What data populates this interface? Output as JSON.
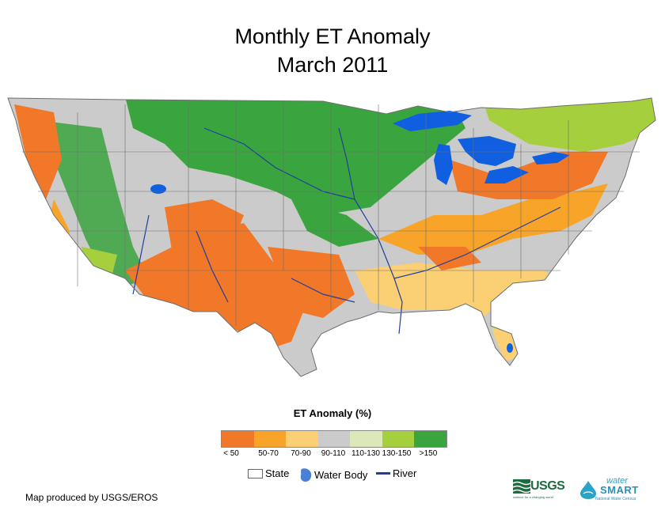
{
  "title": {
    "line1": "Monthly ET Anomaly",
    "line2": "March 2011"
  },
  "legend": {
    "title": "ET Anomaly (%)",
    "classes": [
      {
        "label": "< 50",
        "color": "#f07828"
      },
      {
        "label": "50-70",
        "color": "#f8a428"
      },
      {
        "label": "70-90",
        "color": "#fbcf73"
      },
      {
        "label": "90-110",
        "color": "#cbcbcb"
      },
      {
        "label": "110-130",
        "color": "#dce8b8"
      },
      {
        "label": "130-150",
        "color": "#a5cf3c"
      },
      {
        "label": ">150",
        "color": "#3aa53e"
      }
    ]
  },
  "reference_legend": {
    "state": "State",
    "water_body": "Water Body",
    "river": "River"
  },
  "credit": "Map produced by USGS/EROS",
  "logos": {
    "usgs": "USGS",
    "usgs_tagline": "science for a changing world",
    "water": "water",
    "smart": "SMART",
    "census": "National Water Census"
  },
  "colors": {
    "water": "#0f5fe0",
    "river": "#1f3f9e",
    "state_border": "#6e6e6e",
    "background": "#ffffff"
  }
}
